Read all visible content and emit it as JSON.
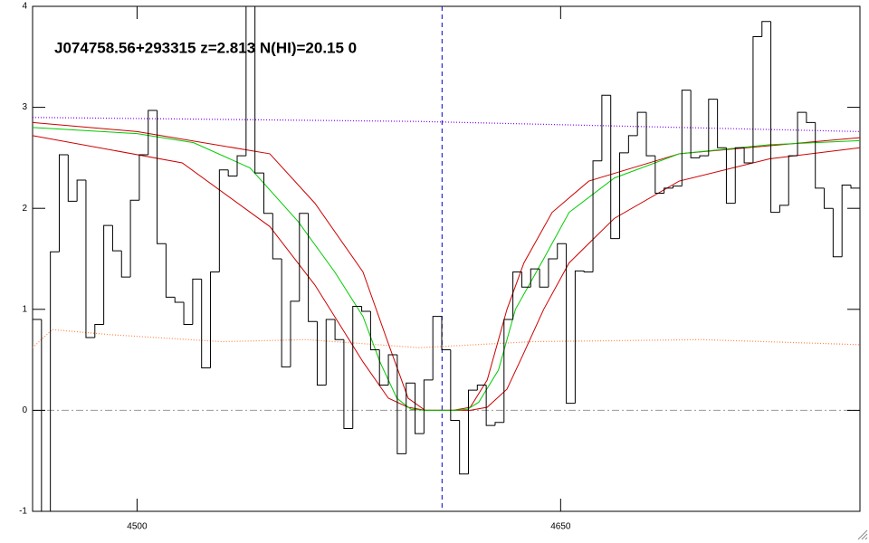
{
  "chart_data": {
    "type": "line",
    "annotation": "J074758.56+293315 z=2.813 N(HI)=20.15 0",
    "xlim": [
      4463,
      4756
    ],
    "ylim": [
      -1,
      4
    ],
    "xticks": [
      4500,
      4650
    ],
    "yticks": [
      -1,
      0,
      1,
      2,
      3,
      4
    ],
    "vline": 4608,
    "vline_color": "#0000cc",
    "zero_line_color": "#999999",
    "histogram": {
      "color": "#000000",
      "bins": [
        4463.0,
        4466.15,
        4469.3,
        4472.45,
        4475.6,
        4478.75,
        4481.9,
        4485.05,
        4488.2,
        4491.35,
        4494.5,
        4497.65,
        4500.8,
        4503.95,
        4507.1,
        4510.25,
        4513.4,
        4516.55,
        4519.7,
        4522.85,
        4526.0,
        4529.15,
        4532.3,
        4535.45,
        4538.6,
        4541.75,
        4544.9,
        4548.05,
        4551.2,
        4554.35,
        4557.5,
        4560.65,
        4563.8,
        4566.95,
        4570.1,
        4573.25,
        4576.4,
        4579.55,
        4582.7,
        4585.85,
        4589.0,
        4592.15,
        4595.3,
        4598.45,
        4601.6,
        4604.75,
        4607.9,
        4611.05,
        4614.2,
        4617.35,
        4620.5,
        4623.65,
        4626.8,
        4629.95,
        4633.1,
        4636.25,
        4639.4,
        4642.55,
        4645.7,
        4648.85,
        4652.0,
        4655.15,
        4658.3,
        4661.45,
        4664.6,
        4667.75,
        4670.9,
        4674.05,
        4677.2,
        4680.35,
        4683.5,
        4686.65,
        4689.8,
        4692.95,
        4696.1,
        4699.25,
        4702.4,
        4705.55,
        4708.7,
        4711.85,
        4715.0,
        4718.15,
        4721.3,
        4724.45,
        4727.6,
        4730.75,
        4733.9,
        4737.05,
        4740.2,
        4743.35,
        4746.5,
        4749.65,
        4752.8,
        4755.95
      ],
      "values": [
        0.9,
        -1.2,
        1.57,
        2.53,
        2.07,
        2.28,
        0.72,
        0.85,
        1.83,
        1.58,
        1.32,
        2.08,
        2.53,
        2.97,
        1.65,
        1.12,
        1.07,
        0.85,
        1.3,
        0.42,
        1.37,
        2.38,
        2.32,
        2.52,
        4.3,
        2.35,
        1.95,
        1.5,
        0.43,
        1.08,
        1.95,
        0.88,
        0.25,
        0.9,
        0.7,
        -0.18,
        1.03,
        0.98,
        0.6,
        0.25,
        0.55,
        -0.43,
        0.27,
        -0.23,
        0.3,
        0.93,
        0.6,
        -0.1,
        -0.63,
        0.2,
        0.25,
        -0.15,
        -0.12,
        0.9,
        1.37,
        1.22,
        1.4,
        1.22,
        1.5,
        1.65,
        0.07,
        1.38,
        1.37,
        2.47,
        3.12,
        1.7,
        2.55,
        2.72,
        2.95,
        2.52,
        2.15,
        2.2,
        2.22,
        3.17,
        2.5,
        2.52,
        3.08,
        2.6,
        2.05,
        2.6,
        2.45,
        3.7,
        3.85,
        1.96,
        2.03,
        2.52,
        2.95,
        2.85,
        2.2,
        2.0,
        1.52,
        2.23,
        2.2
      ]
    },
    "series": [
      {
        "color": "#8000ff",
        "style": "dotted",
        "x": [
          4463,
          4600,
          4756
        ],
        "values": [
          2.9,
          2.86,
          2.76
        ]
      },
      {
        "color": "#ff8040",
        "style": "dotted",
        "x": [
          4463,
          4470,
          4490,
          4530,
          4560,
          4600,
          4640,
          4700,
          4756
        ],
        "values": [
          0.62,
          0.8,
          0.75,
          0.68,
          0.7,
          0.62,
          0.68,
          0.7,
          0.65
        ]
      },
      {
        "color": "#cc0000",
        "style": "solid",
        "x": [
          4463,
          4500,
          4547,
          4563,
          4580,
          4589,
          4596,
          4602,
          4612,
          4618,
          4624,
          4631,
          4637,
          4647,
          4660,
          4692,
          4756
        ],
        "values": [
          2.85,
          2.76,
          2.54,
          2.05,
          1.37,
          0.66,
          0.12,
          0,
          0,
          0.03,
          0.3,
          1.0,
          1.46,
          1.96,
          2.27,
          2.54,
          2.7
        ]
      },
      {
        "color": "#cc0000",
        "style": "solid",
        "x": [
          4463,
          4516,
          4547,
          4563,
          4580,
          4589,
          4596,
          4602,
          4618,
          4624,
          4631,
          4637,
          4644,
          4653,
          4669,
          4692,
          4724,
          4756
        ],
        "values": [
          2.72,
          2.45,
          1.82,
          1.24,
          0.48,
          0.12,
          0.03,
          0,
          0,
          0.03,
          0.21,
          0.57,
          1.0,
          1.46,
          1.9,
          2.27,
          2.49,
          2.6
        ]
      },
      {
        "color": "#00cc00",
        "style": "solid",
        "x": [
          4463,
          4500,
          4520,
          4540,
          4557,
          4570,
          4580,
          4586,
          4592,
          4597,
          4602,
          4612,
          4617,
          4621,
          4628,
          4634,
          4644,
          4653,
          4669,
          4692,
          4724,
          4756
        ],
        "values": [
          2.8,
          2.74,
          2.65,
          2.4,
          1.87,
          1.37,
          0.93,
          0.48,
          0.12,
          0.01,
          0,
          0,
          0.01,
          0.08,
          0.4,
          1.0,
          1.5,
          1.96,
          2.3,
          2.54,
          2.63,
          2.67
        ]
      }
    ]
  }
}
